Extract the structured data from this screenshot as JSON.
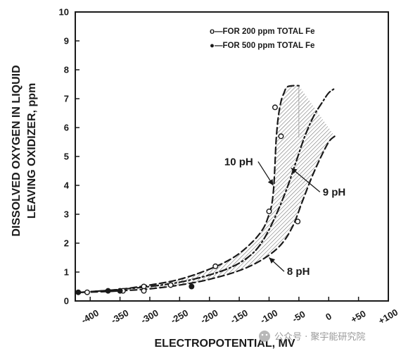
{
  "chart_data": {
    "type": "line",
    "xlabel": "ELECTROPOTENTIAL, MV",
    "ylabel_lines": [
      "DISSOLVED OXYGEN IN LIQUID",
      "LEAVING OXIDIZER, ppm"
    ],
    "xlim": [
      -425,
      100
    ],
    "ylim": [
      0,
      10
    ],
    "x_ticks": [
      -400,
      -350,
      -300,
      -250,
      -200,
      -150,
      -100,
      -50,
      0,
      50,
      100
    ],
    "x_tick_labels": [
      "-400",
      "-350",
      "-300",
      "-250",
      "-200",
      "-150",
      "-100",
      "-50",
      "0",
      "+50",
      "+100"
    ],
    "y_ticks": [
      0,
      1,
      2,
      3,
      4,
      5,
      6,
      7,
      8,
      9,
      10
    ],
    "y_tick_labels": [
      "0",
      "1",
      "2",
      "3",
      "4",
      "5",
      "6",
      "7",
      "8",
      "9",
      "10"
    ],
    "grid": false,
    "legend_position": "top-right",
    "legend": [
      {
        "marker": "open-circle",
        "label": "o—FOR 200 ppm TOTAL Fe"
      },
      {
        "marker": "filled-circle",
        "label": "●—FOR 500 ppm TOTAL Fe"
      }
    ],
    "series": [
      {
        "name": "10 pH",
        "style": "dashed",
        "x": [
          -415,
          -380,
          -350,
          -300,
          -250,
          -200,
          -160,
          -130,
          -110,
          -100,
          -95,
          -92,
          -90,
          -88,
          -85,
          -80,
          -75,
          -70,
          -60,
          -50
        ],
        "y": [
          0.3,
          0.35,
          0.4,
          0.55,
          0.75,
          1.1,
          1.5,
          2.0,
          2.5,
          3.0,
          3.4,
          4.0,
          4.8,
          5.6,
          6.3,
          6.9,
          7.2,
          7.4,
          7.45,
          7.45
        ]
      },
      {
        "name": "9 pH",
        "style": "dash-dot",
        "x": [
          -415,
          -380,
          -350,
          -300,
          -250,
          -200,
          -160,
          -130,
          -110,
          -90,
          -70,
          -55,
          -40,
          -25,
          -10,
          0,
          10
        ],
        "y": [
          0.3,
          0.35,
          0.4,
          0.5,
          0.65,
          0.9,
          1.2,
          1.6,
          2.1,
          2.9,
          3.9,
          4.8,
          5.7,
          6.4,
          6.9,
          7.2,
          7.35
        ]
      },
      {
        "name": "8 pH",
        "style": "dashed",
        "x": [
          -415,
          -380,
          -350,
          -300,
          -250,
          -200,
          -150,
          -110,
          -80,
          -60,
          -45,
          -30,
          -15,
          0,
          10
        ],
        "y": [
          0.3,
          0.32,
          0.35,
          0.42,
          0.55,
          0.75,
          1.05,
          1.45,
          1.95,
          2.6,
          3.4,
          4.2,
          4.9,
          5.5,
          5.7
        ]
      }
    ],
    "shaded_band": {
      "between": [
        "10 pH",
        "8 pH"
      ],
      "x_from": -300,
      "right_edge": {
        "x": [
          -50,
          10
        ],
        "y": [
          7.45,
          5.7
        ]
      }
    },
    "points": [
      {
        "group": "200 ppm",
        "marker": "open",
        "x": [
          -90,
          -80,
          -100,
          -190,
          -310,
          -310,
          -265,
          -52,
          -405,
          -345
        ],
        "y": [
          6.7,
          5.7,
          3.1,
          1.2,
          0.5,
          0.35,
          0.55,
          2.75,
          0.3,
          0.35
        ]
      },
      {
        "group": "500 ppm",
        "marker": "filled",
        "x": [
          -420,
          -370,
          -350,
          -230
        ],
        "y": [
          0.3,
          0.35,
          0.35,
          0.5
        ]
      }
    ],
    "annotations": [
      {
        "text": "10 pH",
        "points_to": [
          -93,
          4.0
        ],
        "text_at": [
          -175,
          4.7
        ]
      },
      {
        "text": "9 pH",
        "points_to": [
          -63,
          4.6
        ],
        "text_at": [
          -10,
          3.65
        ]
      },
      {
        "text": "8 pH",
        "points_to": [
          -100,
          1.5
        ],
        "text_at": [
          -70,
          0.9
        ]
      }
    ]
  },
  "watermark": {
    "icon": "wechat-icon",
    "text": "公众号 · 聚宇能研究院"
  }
}
